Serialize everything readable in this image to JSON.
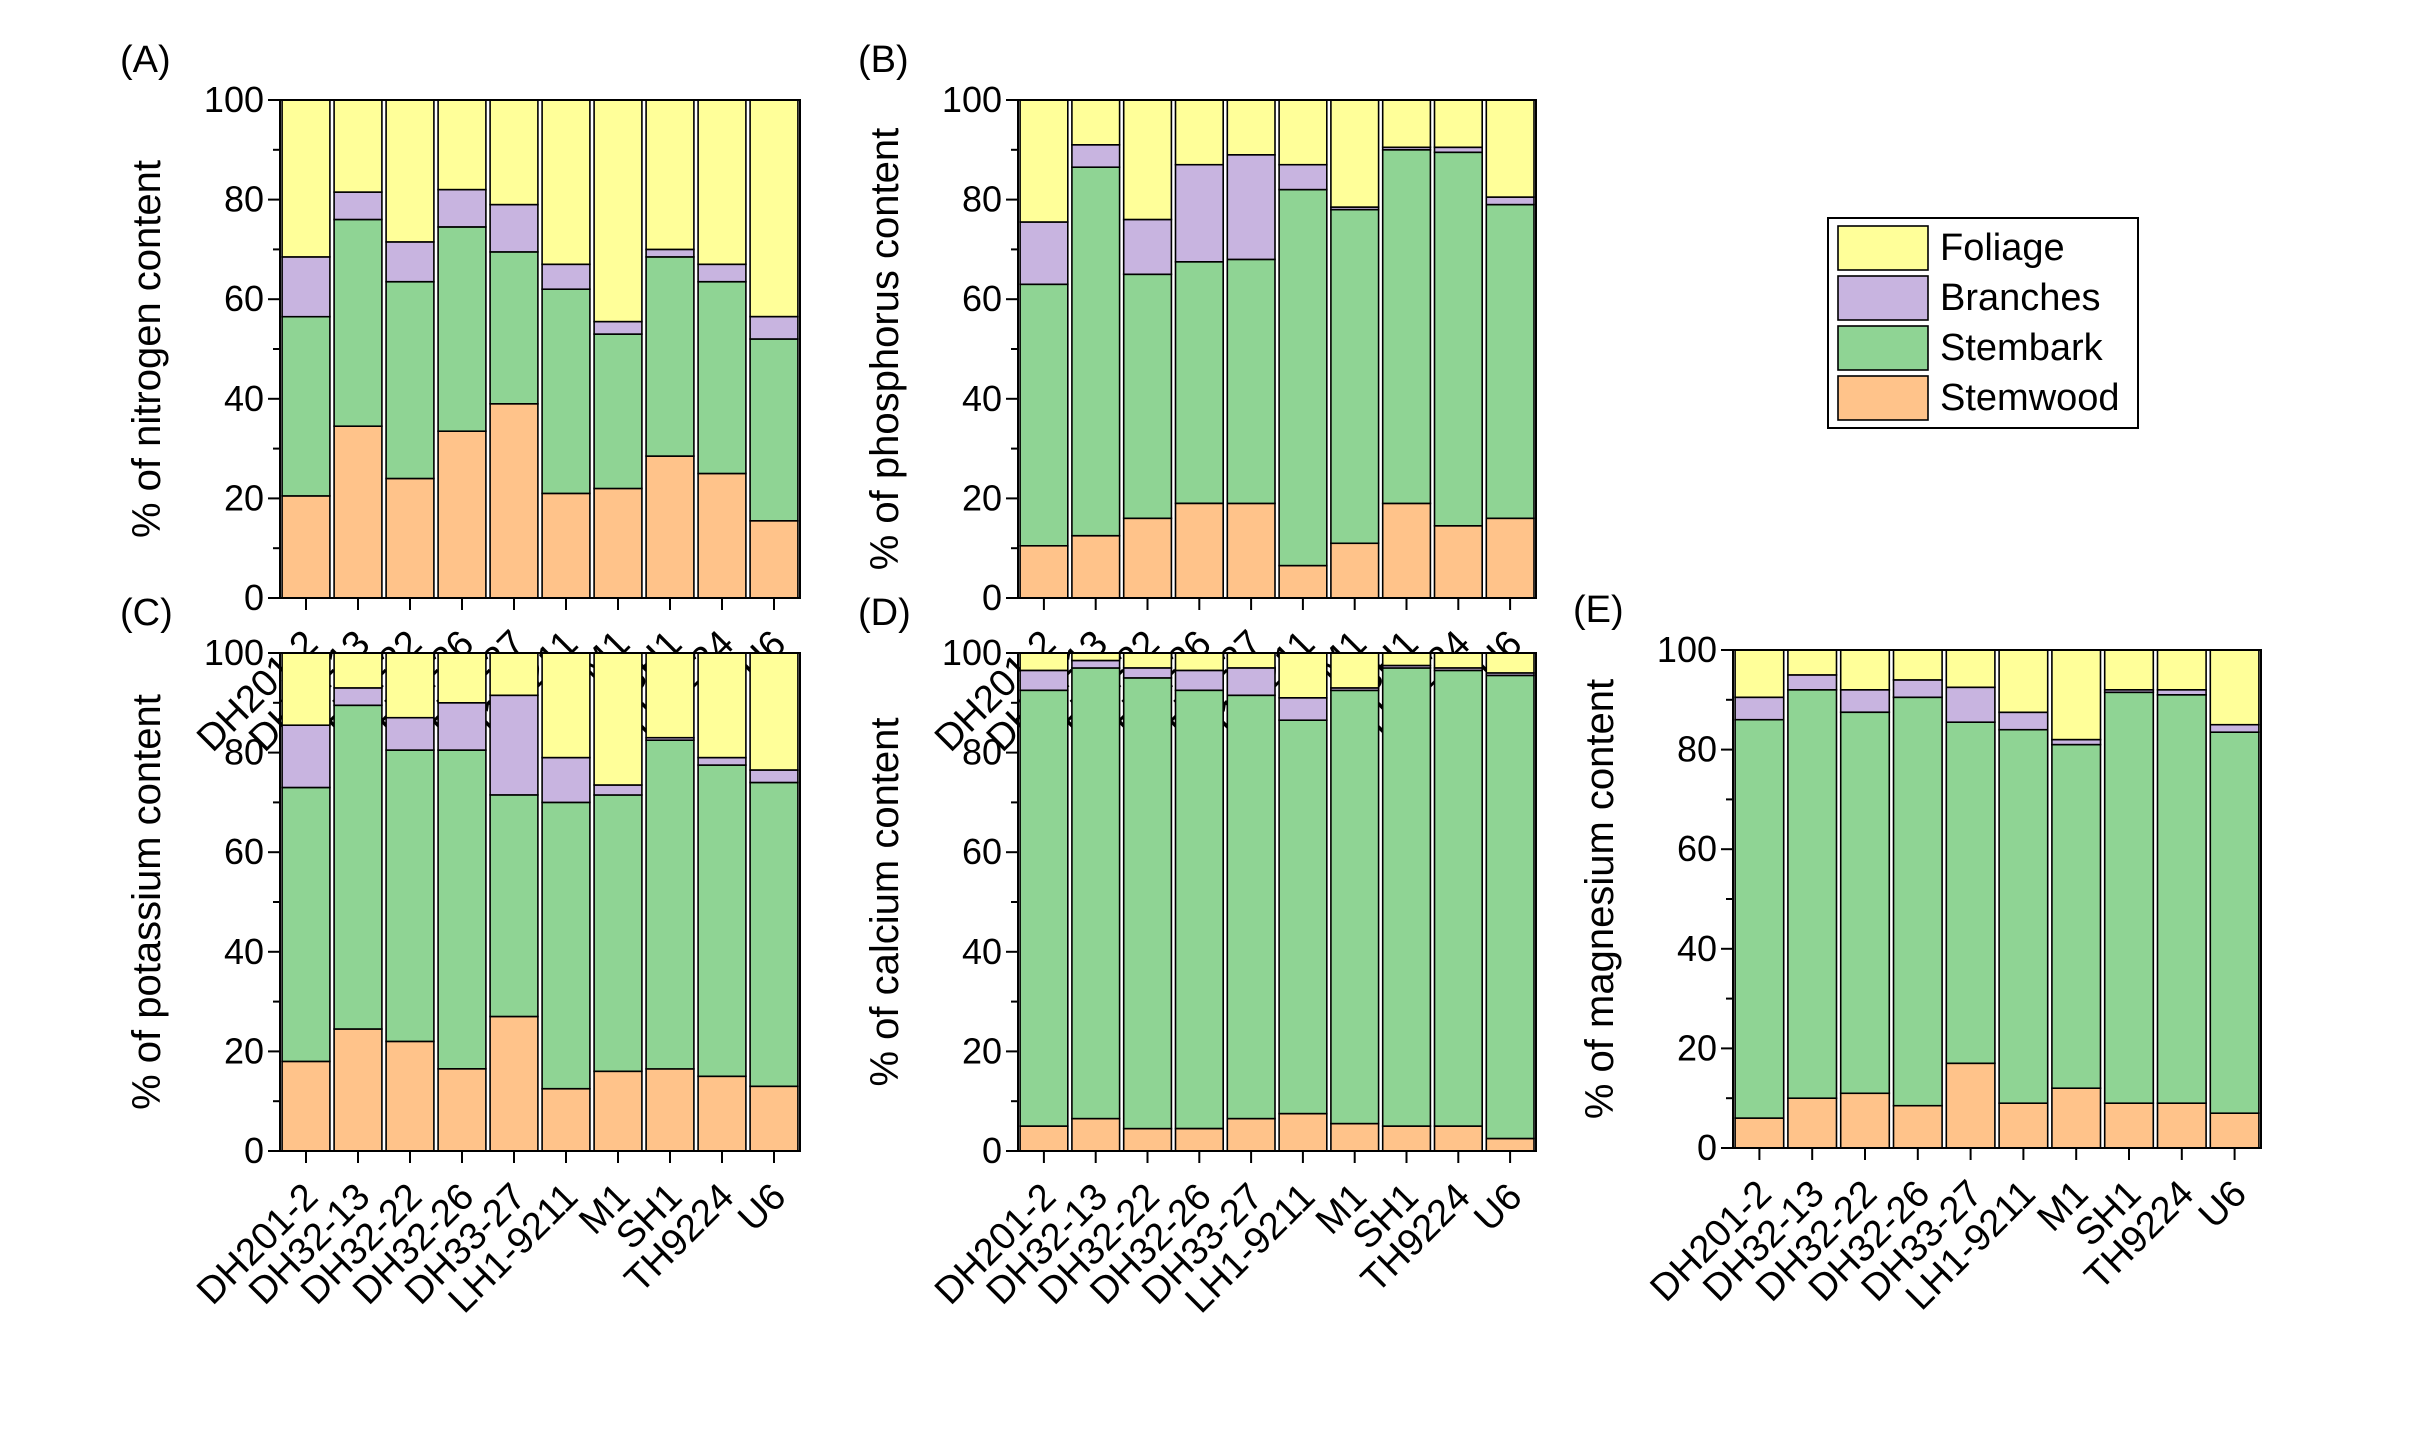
{
  "legend": {
    "position": "right of panel B",
    "entries": [
      {
        "label": "Foliage",
        "color": "#ffff99"
      },
      {
        "label": "Branches",
        "color": "#c8b4e0"
      },
      {
        "label": "Stembark",
        "color": "#8fd494"
      },
      {
        "label": "Stemwood",
        "color": "#ffc38a"
      }
    ]
  },
  "chart_data": [
    {
      "type": "bar",
      "stacked": true,
      "panel": "(A)",
      "ylabel": "% of nitrogen content",
      "ylim": [
        0,
        100
      ],
      "yticks": [
        0,
        20,
        40,
        60,
        80,
        100
      ],
      "categories": [
        "DH201-2",
        "DH32-13",
        "DH32-22",
        "DH32-26",
        "DH33-27",
        "LH1-9211",
        "M1",
        "SH1",
        "TH9224",
        "U6"
      ],
      "series": [
        {
          "name": "Stemwood",
          "values": [
            20.5,
            34.5,
            24,
            33.5,
            39,
            21,
            22,
            28.5,
            25,
            15.5
          ]
        },
        {
          "name": "Stembark",
          "values": [
            36,
            41.5,
            39.5,
            41,
            30.5,
            41,
            31,
            40,
            38.5,
            36.5
          ]
        },
        {
          "name": "Branches",
          "values": [
            12,
            5.5,
            8,
            7.5,
            9.5,
            5,
            2.5,
            1.5,
            3.5,
            4.5
          ]
        },
        {
          "name": "Foliage",
          "values": [
            31.5,
            18.5,
            28.5,
            18,
            21,
            33,
            44.5,
            30,
            33,
            43.5
          ]
        }
      ]
    },
    {
      "type": "bar",
      "stacked": true,
      "panel": "(B)",
      "ylabel": "% of phosphorus content",
      "ylim": [
        0,
        100
      ],
      "yticks": [
        0,
        20,
        40,
        60,
        80,
        100
      ],
      "categories": [
        "DH201-2",
        "DH32-13",
        "DH32-22",
        "DH32-26",
        "DH33-27",
        "LH1-9211",
        "M1",
        "SH1",
        "TH9224",
        "U6"
      ],
      "series": [
        {
          "name": "Stemwood",
          "values": [
            10.5,
            12.5,
            16,
            19,
            19,
            6.5,
            11,
            19,
            14.5,
            16
          ]
        },
        {
          "name": "Stembark",
          "values": [
            52.5,
            74,
            49,
            48.5,
            49,
            75.5,
            67,
            71,
            75,
            63
          ]
        },
        {
          "name": "Branches",
          "values": [
            12.5,
            4.5,
            11,
            19.5,
            21,
            5,
            0.5,
            0.5,
            1,
            1.5
          ]
        },
        {
          "name": "Foliage",
          "values": [
            24.5,
            9,
            24,
            13,
            11,
            13,
            21.5,
            9.5,
            9.5,
            19.5
          ]
        }
      ]
    },
    {
      "type": "bar",
      "stacked": true,
      "panel": "(C)",
      "ylabel": "% of potassium content",
      "ylim": [
        0,
        100
      ],
      "yticks": [
        0,
        20,
        40,
        60,
        80,
        100
      ],
      "categories": [
        "DH201-2",
        "DH32-13",
        "DH32-22",
        "DH32-26",
        "DH33-27",
        "LH1-9211",
        "M1",
        "SH1",
        "TH9224",
        "U6"
      ],
      "series": [
        {
          "name": "Stemwood",
          "values": [
            18,
            24.5,
            22,
            16.5,
            27,
            12.5,
            16,
            16.5,
            15,
            13
          ]
        },
        {
          "name": "Stembark",
          "values": [
            55,
            65,
            58.5,
            64,
            44.5,
            57.5,
            55.5,
            66,
            62.5,
            61
          ]
        },
        {
          "name": "Branches",
          "values": [
            12.5,
            3.5,
            6.5,
            9.5,
            20,
            9,
            2,
            0.5,
            1.5,
            2.5
          ]
        },
        {
          "name": "Foliage",
          "values": [
            14.5,
            7,
            13,
            10,
            8.5,
            21,
            26.5,
            17,
            21,
            23.5
          ]
        }
      ]
    },
    {
      "type": "bar",
      "stacked": true,
      "panel": "(D)",
      "ylabel": "% of calcium content",
      "ylim": [
        0,
        100
      ],
      "yticks": [
        0,
        20,
        40,
        60,
        80,
        100
      ],
      "categories": [
        "DH201-2",
        "DH32-13",
        "DH32-22",
        "DH32-26",
        "DH33-27",
        "LH1-9211",
        "M1",
        "SH1",
        "TH9224",
        "U6"
      ],
      "series": [
        {
          "name": "Stemwood",
          "values": [
            5,
            6.5,
            4.5,
            4.5,
            6.5,
            7.5,
            5.5,
            5,
            5,
            2.5
          ]
        },
        {
          "name": "Stembark",
          "values": [
            87.5,
            90.5,
            90.5,
            88,
            85,
            79,
            87,
            92,
            91.5,
            93
          ]
        },
        {
          "name": "Branches",
          "values": [
            4,
            1.5,
            2,
            4,
            5.5,
            4.5,
            0.5,
            0.5,
            0.5,
            0.5
          ]
        },
        {
          "name": "Foliage",
          "values": [
            3.5,
            1.5,
            3,
            3.5,
            3,
            9,
            7,
            2.5,
            3,
            4
          ]
        }
      ]
    },
    {
      "type": "bar",
      "stacked": true,
      "panel": "(E)",
      "ylabel": "% of magnesium content",
      "ylim": [
        0,
        100
      ],
      "yticks": [
        0,
        20,
        40,
        60,
        80,
        100
      ],
      "categories": [
        "DH201-2",
        "DH32-13",
        "DH32-22",
        "DH32-26",
        "DH33-27",
        "LH1-9211",
        "M1",
        "SH1",
        "TH9224",
        "U6"
      ],
      "series": [
        {
          "name": "Stemwood",
          "values": [
            6,
            10,
            11,
            8.5,
            17,
            9,
            12,
            9,
            9,
            7
          ]
        },
        {
          "name": "Stembark",
          "values": [
            80,
            82,
            76.5,
            82,
            68.5,
            75,
            69,
            82.5,
            82,
            76.5
          ]
        },
        {
          "name": "Branches",
          "values": [
            4.5,
            3,
            4.5,
            3.5,
            7,
            3.5,
            1,
            0.5,
            1,
            1.5
          ]
        },
        {
          "name": "Foliage",
          "values": [
            9.5,
            5,
            8,
            6,
            7.5,
            12.5,
            18,
            8,
            8,
            15
          ]
        }
      ]
    }
  ]
}
